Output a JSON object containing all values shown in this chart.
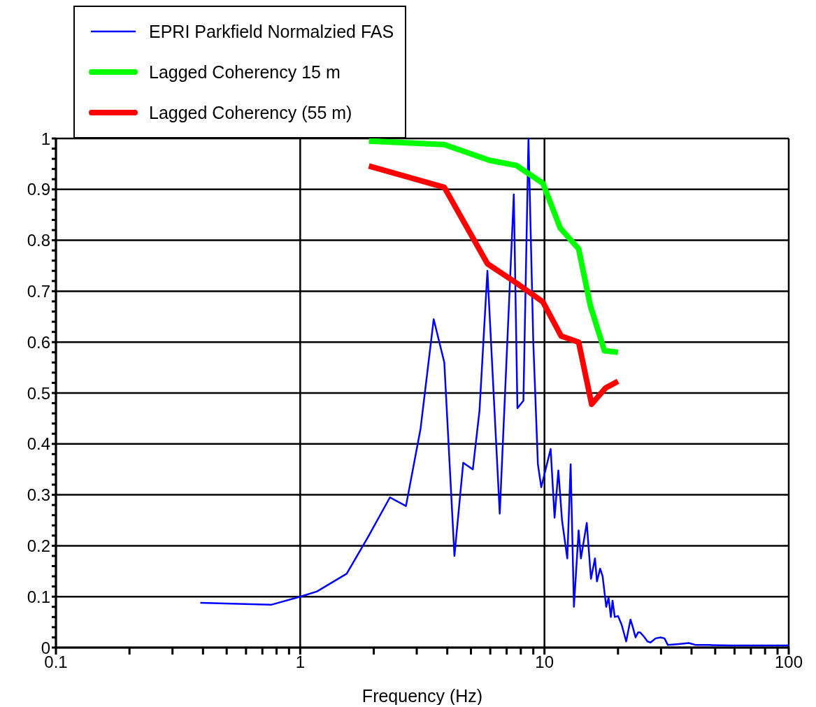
{
  "chart_data": {
    "type": "line",
    "xlabel": "Frequency (Hz)",
    "log": "x",
    "grid": true,
    "legend": "top left",
    "marker": "none",
    "line_style": "solid",
    "xlim": [
      0.1,
      100
    ],
    "xticks": [
      0.1,
      {
        "value": 0.2,
        "label": null
      },
      {
        "value": 0.3,
        "label": null
      },
      {
        "value": 0.4,
        "label": null
      },
      {
        "value": 0.5,
        "label": null
      },
      {
        "value": 0.6,
        "label": null
      },
      {
        "value": 0.7,
        "label": null
      },
      {
        "value": 0.8,
        "label": null
      },
      {
        "value": 0.9,
        "label": null
      },
      1,
      {
        "value": 2,
        "label": null
      },
      {
        "value": 3,
        "label": null
      },
      {
        "value": 4,
        "label": null
      },
      {
        "value": 5,
        "label": null
      },
      {
        "value": 6,
        "label": null
      },
      {
        "value": 7,
        "label": null
      },
      {
        "value": 8,
        "label": null
      },
      {
        "value": 9,
        "label": null
      },
      10,
      {
        "value": 20,
        "label": null
      },
      {
        "value": 30,
        "label": null
      },
      {
        "value": 40,
        "label": null
      },
      {
        "value": 50,
        "label": null
      },
      {
        "value": 60,
        "label": null
      },
      {
        "value": 70,
        "label": null
      },
      {
        "value": 80,
        "label": null
      },
      {
        "value": 90,
        "label": null
      },
      100
    ],
    "ylim": [
      0,
      1
    ],
    "yticks": [
      0,
      {
        "value": 0.02,
        "label": null
      },
      {
        "value": 0.04,
        "label": null
      },
      {
        "value": 0.06,
        "label": null
      },
      {
        "value": 0.08,
        "label": null
      },
      0.1,
      {
        "value": 0.12,
        "label": null
      },
      {
        "value": 0.14,
        "label": null
      },
      {
        "value": 0.16,
        "label": null
      },
      {
        "value": 0.18,
        "label": null
      },
      0.2,
      {
        "value": 0.22,
        "label": null
      },
      {
        "value": 0.24,
        "label": null
      },
      {
        "value": 0.26,
        "label": null
      },
      {
        "value": 0.28,
        "label": null
      },
      0.3,
      {
        "value": 0.32,
        "label": null
      },
      {
        "value": 0.34,
        "label": null
      },
      {
        "value": 0.36,
        "label": null
      },
      {
        "value": 0.38,
        "label": null
      },
      0.4,
      {
        "value": 0.42,
        "label": null
      },
      {
        "value": 0.44,
        "label": null
      },
      {
        "value": 0.46,
        "label": null
      },
      {
        "value": 0.48,
        "label": null
      },
      0.5,
      {
        "value": 0.52,
        "label": null
      },
      {
        "value": 0.54,
        "label": null
      },
      {
        "value": 0.56,
        "label": null
      },
      {
        "value": 0.58,
        "label": null
      },
      0.6,
      {
        "value": 0.62,
        "label": null
      },
      {
        "value": 0.64,
        "label": null
      },
      {
        "value": 0.66,
        "label": null
      },
      {
        "value": 0.68,
        "label": null
      },
      0.7,
      {
        "value": 0.72,
        "label": null
      },
      {
        "value": 0.74,
        "label": null
      },
      {
        "value": 0.76,
        "label": null
      },
      {
        "value": 0.78,
        "label": null
      },
      0.8,
      {
        "value": 0.82,
        "label": null
      },
      {
        "value": 0.84,
        "label": null
      },
      {
        "value": 0.86,
        "label": null
      },
      {
        "value": 0.88,
        "label": null
      },
      0.9,
      {
        "value": 0.92,
        "label": null
      },
      {
        "value": 0.94,
        "label": null
      },
      {
        "value": 0.96,
        "label": null
      },
      {
        "value": 0.98,
        "label": null
      },
      1
    ],
    "series": [
      {
        "name": "EPRI Parkfield Normalzied FAS",
        "color": "#0000ff",
        "x": [
          0.39,
          0.76,
          1.0,
          1.17,
          1.55,
          1.91,
          2.33,
          2.71,
          3.11,
          3.52,
          3.89,
          4.28,
          4.65,
          5.09,
          5.42,
          5.84,
          6.56,
          7.49,
          7.75,
          8.2,
          8.6,
          9.0,
          9.4,
          9.7,
          10.6,
          11.0,
          11.4,
          11.8,
          12.4,
          12.8,
          13.2,
          13.8,
          14.1,
          14.9,
          15.5,
          16.1,
          16.4,
          16.9,
          17.3,
          17.9,
          18.3,
          18.7,
          19.0,
          19.4,
          20.0,
          20.7,
          21.6,
          22.5,
          23.0,
          23.6,
          24.2,
          24.6,
          25.5,
          26.4,
          27.2,
          28.5,
          29.9,
          31.0,
          32.0,
          35.5,
          39.0,
          41.7,
          47.5,
          57.8,
          70.5,
          86,
          100
        ],
        "values": [
          0.088,
          0.084,
          0.1,
          0.11,
          0.145,
          0.22,
          0.295,
          0.278,
          0.43,
          0.645,
          0.56,
          0.18,
          0.363,
          0.35,
          0.465,
          0.74,
          0.263,
          0.89,
          0.47,
          0.485,
          1.0,
          0.6,
          0.36,
          0.315,
          0.39,
          0.255,
          0.348,
          0.25,
          0.175,
          0.36,
          0.08,
          0.23,
          0.175,
          0.245,
          0.135,
          0.175,
          0.13,
          0.155,
          0.14,
          0.08,
          0.098,
          0.06,
          0.092,
          0.06,
          0.062,
          0.045,
          0.012,
          0.055,
          0.04,
          0.02,
          0.03,
          0.03,
          0.022,
          0.012,
          0.01,
          0.018,
          0.02,
          0.018,
          0.005,
          0.007,
          0.009,
          0.005,
          0.005,
          0.004,
          0.004,
          0.004,
          0.004
        ]
      },
      {
        "name": "Lagged Coherency 15 m",
        "color": "#00ff00",
        "x": [
          1.91,
          3.89,
          5.96,
          7.68,
          9.85,
          11.6,
          13.8,
          15.4,
          17.6,
          20.0
        ],
        "values": [
          0.995,
          0.988,
          0.957,
          0.947,
          0.912,
          0.824,
          0.783,
          0.672,
          0.583,
          0.58
        ]
      },
      {
        "name": "Lagged Coherency (55 m)",
        "color": "#ff0000",
        "x": [
          1.91,
          3.89,
          5.84,
          7.68,
          9.85,
          11.7,
          13.8,
          15.6,
          17.8,
          20.0
        ],
        "values": [
          0.946,
          0.904,
          0.754,
          0.716,
          0.679,
          0.612,
          0.6,
          0.478,
          0.51,
          0.523
        ]
      }
    ]
  }
}
